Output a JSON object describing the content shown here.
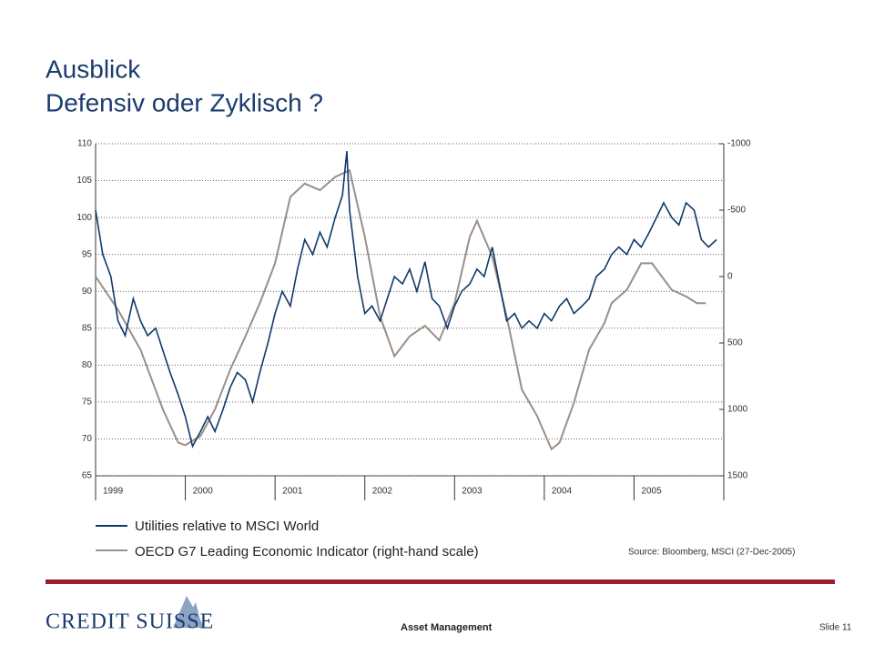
{
  "chart_data": {
    "type": "line",
    "title": "Ausblick",
    "subtitle": "Defensiv oder Zyklisch ?",
    "xlim": [
      1999,
      2006
    ],
    "xticks": [
      1999,
      2000,
      2001,
      2002,
      2003,
      2004,
      2005
    ],
    "ylim": [
      65,
      110
    ],
    "yticks": [
      65,
      70,
      75,
      80,
      85,
      90,
      95,
      100,
      105,
      110
    ],
    "y2lim": [
      1500,
      -1000
    ],
    "y2ticks": [
      1500,
      1000,
      500,
      0,
      -500,
      -1000
    ],
    "grid": true,
    "series": [
      {
        "name": "Utilities relative to MSCI World",
        "color": "#0e3a6b",
        "x": [
          1999.0,
          1999.08,
          1999.17,
          1999.25,
          1999.33,
          1999.42,
          1999.5,
          1999.58,
          1999.67,
          1999.75,
          1999.83,
          1999.92,
          2000.0,
          2000.08,
          2000.17,
          2000.25,
          2000.33,
          2000.42,
          2000.5,
          2000.58,
          2000.67,
          2000.75,
          2000.83,
          2000.92,
          2001.0,
          2001.08,
          2001.17,
          2001.25,
          2001.33,
          2001.42,
          2001.5,
          2001.58,
          2001.67,
          2001.75,
          2001.8,
          2001.83,
          2001.92,
          2002.0,
          2002.08,
          2002.17,
          2002.25,
          2002.33,
          2002.42,
          2002.5,
          2002.58,
          2002.67,
          2002.75,
          2002.83,
          2002.92,
          2003.0,
          2003.08,
          2003.17,
          2003.25,
          2003.33,
          2003.42,
          2003.5,
          2003.58,
          2003.67,
          2003.75,
          2003.83,
          2003.92,
          2004.0,
          2004.08,
          2004.17,
          2004.25,
          2004.33,
          2004.42,
          2004.5,
          2004.58,
          2004.67,
          2004.75,
          2004.83,
          2004.92,
          2005.0,
          2005.08,
          2005.17,
          2005.25,
          2005.33,
          2005.42,
          2005.5,
          2005.58,
          2005.67,
          2005.75,
          2005.83,
          2005.92
        ],
        "values": [
          101,
          95,
          92,
          86,
          84,
          89,
          86,
          84,
          85,
          82,
          79,
          76,
          73,
          69,
          71,
          73,
          71,
          74,
          77,
          79,
          78,
          75,
          79,
          83,
          87,
          90,
          88,
          93,
          97,
          95,
          98,
          96,
          100,
          103,
          109,
          101,
          92,
          87,
          88,
          86,
          89,
          92,
          91,
          93,
          90,
          94,
          89,
          88,
          85,
          88,
          90,
          91,
          93,
          92,
          96,
          91,
          86,
          87,
          85,
          86,
          85,
          87,
          86,
          88,
          89,
          87,
          88,
          89,
          92,
          93,
          95,
          96,
          95,
          97,
          96,
          98,
          100,
          102,
          100,
          99,
          102,
          101,
          97,
          96,
          97
        ]
      },
      {
        "name": "OECD G7 Leading Economic Indicator (right-hand scale)",
        "color": "#9b8f86",
        "axis": "y2",
        "x": [
          1999.0,
          1999.25,
          1999.5,
          1999.75,
          1999.92,
          2000.0,
          2000.17,
          2000.33,
          2000.5,
          2000.67,
          2000.83,
          2001.0,
          2001.17,
          2001.33,
          2001.5,
          2001.67,
          2001.83,
          2002.0,
          2002.17,
          2002.33,
          2002.5,
          2002.67,
          2002.83,
          2003.0,
          2003.17,
          2003.25,
          2003.42,
          2003.58,
          2003.75,
          2003.92,
          2004.08,
          2004.17,
          2004.33,
          2004.5,
          2004.67,
          2004.75,
          2004.92,
          2005.08,
          2005.2,
          2005.42,
          2005.58,
          2005.7,
          2005.8
        ],
        "values": [
          0,
          250,
          550,
          1000,
          1250,
          1270,
          1200,
          1000,
          700,
          450,
          200,
          -100,
          -600,
          -700,
          -650,
          -750,
          -800,
          -300,
          300,
          600,
          450,
          370,
          480,
          200,
          -300,
          -420,
          -150,
          300,
          850,
          1050,
          1300,
          1250,
          950,
          550,
          350,
          200,
          100,
          -100,
          -100,
          100,
          150,
          200,
          200
        ]
      }
    ]
  },
  "source": "Source: Bloomberg, MSCI (27-Dec-2005)",
  "logo": "CREDIT SUISSE",
  "footer": "Asset Management",
  "slide_number": "Slide 11"
}
